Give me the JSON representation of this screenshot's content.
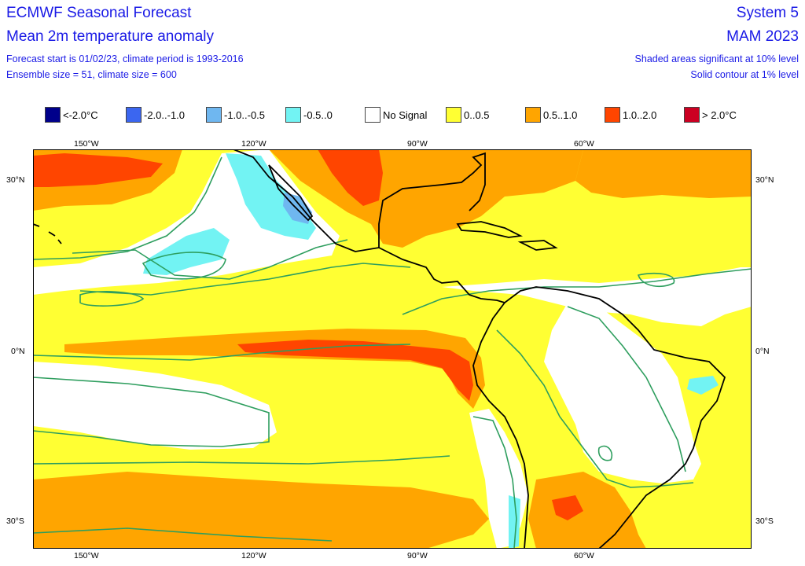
{
  "header": {
    "title": "ECMWF Seasonal Forecast",
    "subtitle": "Mean 2m temperature anomaly",
    "info_line1": "Forecast start is 01/02/23, climate period is 1993-2016",
    "info_line2": "Ensemble size = 51, climate size = 600",
    "system": "System 5",
    "season": "MAM 2023",
    "sig_note1": "Shaded areas significant at 10% level",
    "sig_note2": "Solid contour at 1% level"
  },
  "legend": [
    {
      "label": "<-2.0°C",
      "color": "#00008b"
    },
    {
      "label": "-2.0..-1.0",
      "color": "#3b66f0"
    },
    {
      "label": "-1.0..-0.5",
      "color": "#6fb7f0"
    },
    {
      "label": "-0.5..0",
      "color": "#72f3f3"
    },
    {
      "label": "No Signal",
      "color": "#ffffff"
    },
    {
      "label": "0..0.5",
      "color": "#ffff33"
    },
    {
      "label": "0.5..1.0",
      "color": "#ffa500"
    },
    {
      "label": "1.0..2.0",
      "color": "#ff4500"
    },
    {
      "label": "> 2.0°C",
      "color": "#cc0022"
    }
  ],
  "axes": {
    "lon_top": [
      "150°W",
      "120°W",
      "90°W",
      "60°W"
    ],
    "lon_bottom": [
      "150°W",
      "120°W",
      "90°W",
      "60°W"
    ],
    "lat_left": [
      "30°N",
      "0°N",
      "30°S"
    ],
    "lat_right": [
      "30°N",
      "0°N",
      "30°S"
    ]
  },
  "colors": {
    "contour": "#2e9e5e",
    "coast": "#000000",
    "title_blue": "#1a1ae6"
  }
}
